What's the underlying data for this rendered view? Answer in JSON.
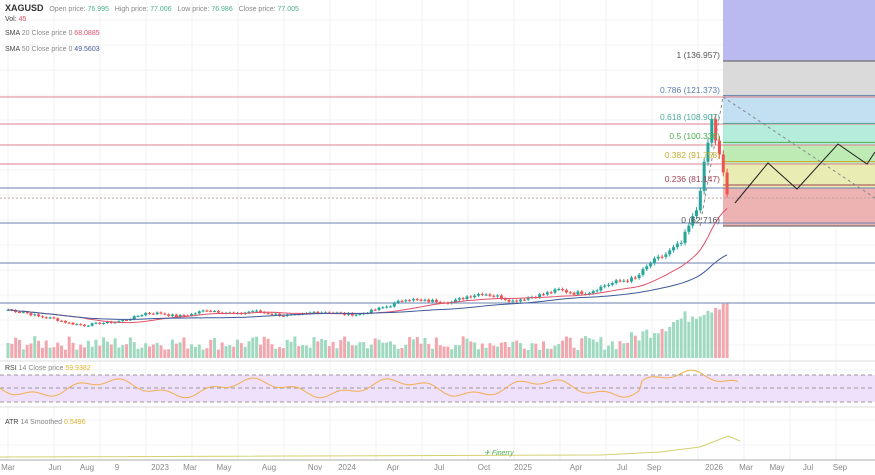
{
  "header": {
    "symbol": "XAGUSD",
    "open_label": "Open price:",
    "open": "76.995",
    "high_label": "High price:",
    "high": "77.006",
    "low_label": "Low price:",
    "low": "76.986",
    "close_label": "Close price:",
    "close": "77.005",
    "vol_label": "Vol:",
    "vol": "45"
  },
  "indicators": {
    "sma20_name": "SMA",
    "sma20_params": "20 Close price 0",
    "sma20_value": "68.0885",
    "sma50_name": "SMA",
    "sma50_params": "50 Close price 0",
    "sma50_value": "49.5603",
    "rsi_name": "RSI",
    "rsi_params": "14 Close price",
    "rsi_value": "59.9382",
    "atr_name": "ATR",
    "atr_params": "14 Smoothed",
    "atr_value": "0.5496"
  },
  "fib_levels": [
    {
      "label": "1 (136.957)",
      "level": 1,
      "price": 136.957,
      "color": "#555555"
    },
    {
      "label": "0.786 (121.373)",
      "level": 0.786,
      "price": 121.373,
      "color": "#5b7fa8"
    },
    {
      "label": "0.618 (108.907)",
      "level": 0.618,
      "price": 108.907,
      "color": "#4cae9a"
    },
    {
      "label": "0.5 (100.336)",
      "level": 0.5,
      "price": 100.336,
      "color": "#4caf50"
    },
    {
      "label": "0.382 (91.758)",
      "level": 0.382,
      "price": 91.758,
      "color": "#c8b030"
    },
    {
      "label": "0.236 (81.147)",
      "level": 0.236,
      "price": 81.147,
      "color": "#a04050"
    },
    {
      "label": "0 (62.716)",
      "level": 0,
      "price": 62.716,
      "color": "#555555"
    }
  ],
  "watermark": "Finerry",
  "chart_data": {
    "type": "candlestick",
    "title": "XAGUSD",
    "x_ticks": [
      "Mar",
      "Jun",
      "Aug",
      "9",
      "2023",
      "Mar",
      "May",
      "Aug",
      "Nov",
      "2024",
      "Apr",
      "Jul",
      "Oct",
      "2025",
      "Apr",
      "Jul",
      "Sep",
      "2026",
      "Mar",
      "May",
      "Jul",
      "Sep"
    ],
    "months": [
      "2022-03",
      "2022-04",
      "2022-05",
      "2022-06",
      "2022-07",
      "2022-08",
      "2022-09",
      "2022-10",
      "2022-11",
      "2022-12",
      "2023-01",
      "2023-02",
      "2023-03",
      "2023-04",
      "2023-05",
      "2023-06",
      "2023-07",
      "2023-08",
      "2023-09",
      "2023-10",
      "2023-11",
      "2023-12",
      "2024-01",
      "2024-02",
      "2024-03",
      "2024-04",
      "2024-05",
      "2024-06",
      "2024-07",
      "2024-08",
      "2024-09",
      "2024-10",
      "2024-11",
      "2024-12",
      "2025-01",
      "2025-02",
      "2025-03",
      "2025-04",
      "2025-05",
      "2025-06",
      "2025-07",
      "2025-08",
      "2025-09",
      "2025-10",
      "2025-11",
      "2025-12",
      "2026-01",
      "2026-02"
    ],
    "close": [
      25,
      24,
      22,
      21,
      19,
      18,
      19,
      19.5,
      21,
      23.5,
      23.5,
      22,
      23,
      25,
      24,
      23,
      24.5,
      23.5,
      22.5,
      22.5,
      24,
      24,
      23,
      23,
      25,
      27,
      30,
      29,
      29,
      28.5,
      31,
      32.5,
      31,
      29,
      30.5,
      32,
      34,
      32.5,
      33,
      36,
      38,
      39,
      46,
      50,
      55,
      70,
      110,
      77
    ],
    "ylim": [
      15,
      140
    ],
    "series": [
      {
        "name": "SMA 20",
        "color": "#e0506a"
      },
      {
        "name": "SMA 50",
        "color": "#3d5a99"
      }
    ],
    "rsi_band": [
      30,
      70
    ]
  }
}
